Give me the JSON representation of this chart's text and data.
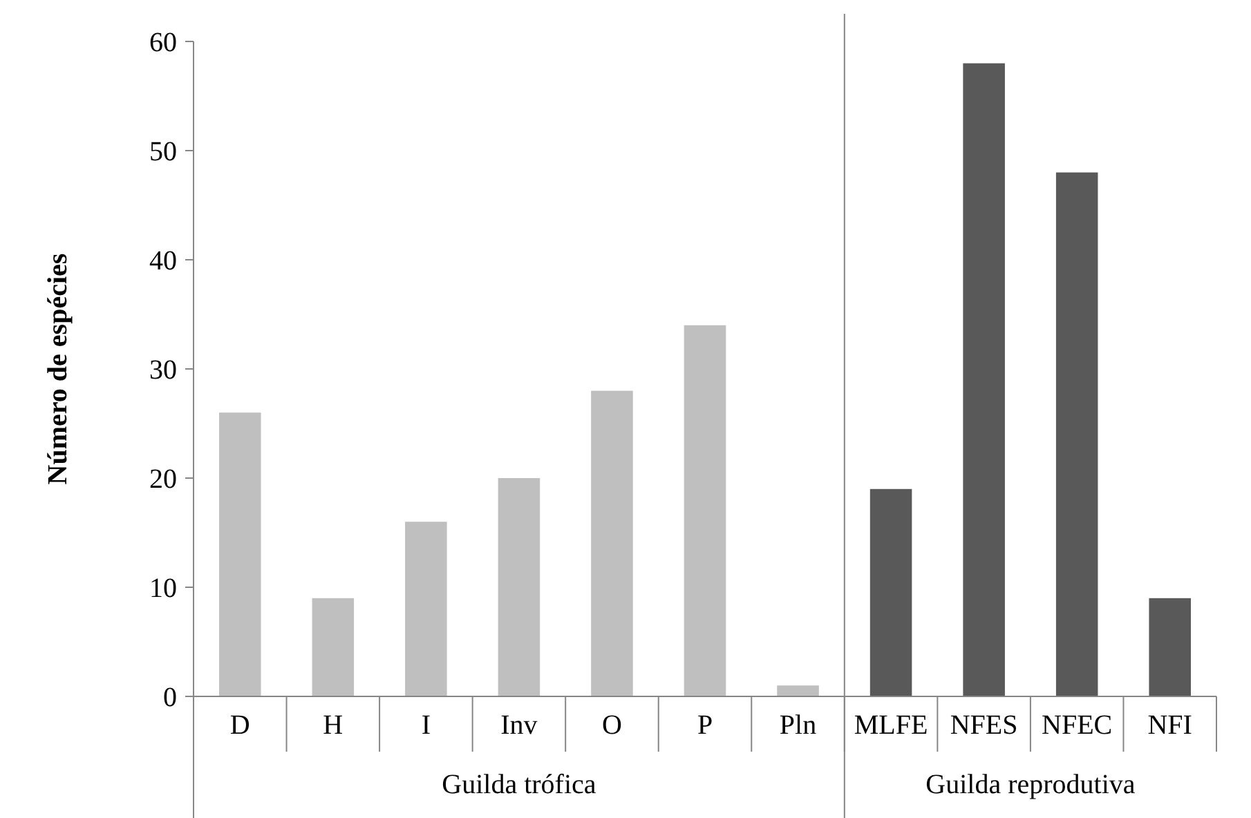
{
  "chart_data": {
    "type": "bar",
    "ylabel": "Número de espécies",
    "categories": [
      "D",
      "H",
      "I",
      "Inv",
      "O",
      "P",
      "Pln",
      "MLFE",
      "NFES",
      "NFEC",
      "NFI"
    ],
    "values": [
      26,
      9,
      16,
      20,
      28,
      34,
      1,
      19,
      58,
      48,
      9
    ],
    "colors": [
      "#bfbfbf",
      "#bfbfbf",
      "#bfbfbf",
      "#bfbfbf",
      "#bfbfbf",
      "#bfbfbf",
      "#bfbfbf",
      "#595959",
      "#595959",
      "#595959",
      "#595959"
    ],
    "ylim": [
      0,
      60
    ],
    "yticks": [
      0,
      10,
      20,
      30,
      40,
      50,
      60
    ],
    "annotations": [
      "Guilda trófica",
      "Guilda reprodutiva"
    ]
  }
}
